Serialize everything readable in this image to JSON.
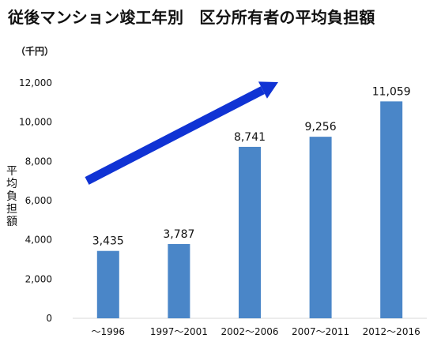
{
  "title": "従後マンション竣工年別　区分所有者の平均負担額",
  "unit_label": "（千円）",
  "chart_data": {
    "type": "bar",
    "title": "従後マンション竣工年別　区分所有者の平均負担額",
    "xlabel": "",
    "ylabel": "平均負担額",
    "unit": "（千円）",
    "categories": [
      "～1996",
      "1997～2001",
      "2002～2006",
      "2007～2011",
      "2012～2016"
    ],
    "values": [
      3435,
      3787,
      8741,
      9256,
      11059
    ],
    "data_labels": [
      "3,435",
      "3,787",
      "8,741",
      "9,256",
      "11,059"
    ],
    "ylim": [
      0,
      12000
    ],
    "yticks": [
      0,
      2000,
      4000,
      6000,
      8000,
      10000,
      12000
    ],
    "ytick_labels": [
      "0",
      "2,000",
      "4,000",
      "6,000",
      "8,000",
      "10,000",
      "12,000"
    ],
    "grid": false,
    "bar_color": "#4a86c8",
    "annotation": {
      "type": "arrow",
      "direction": "up-right",
      "color": "#1033d4"
    }
  }
}
